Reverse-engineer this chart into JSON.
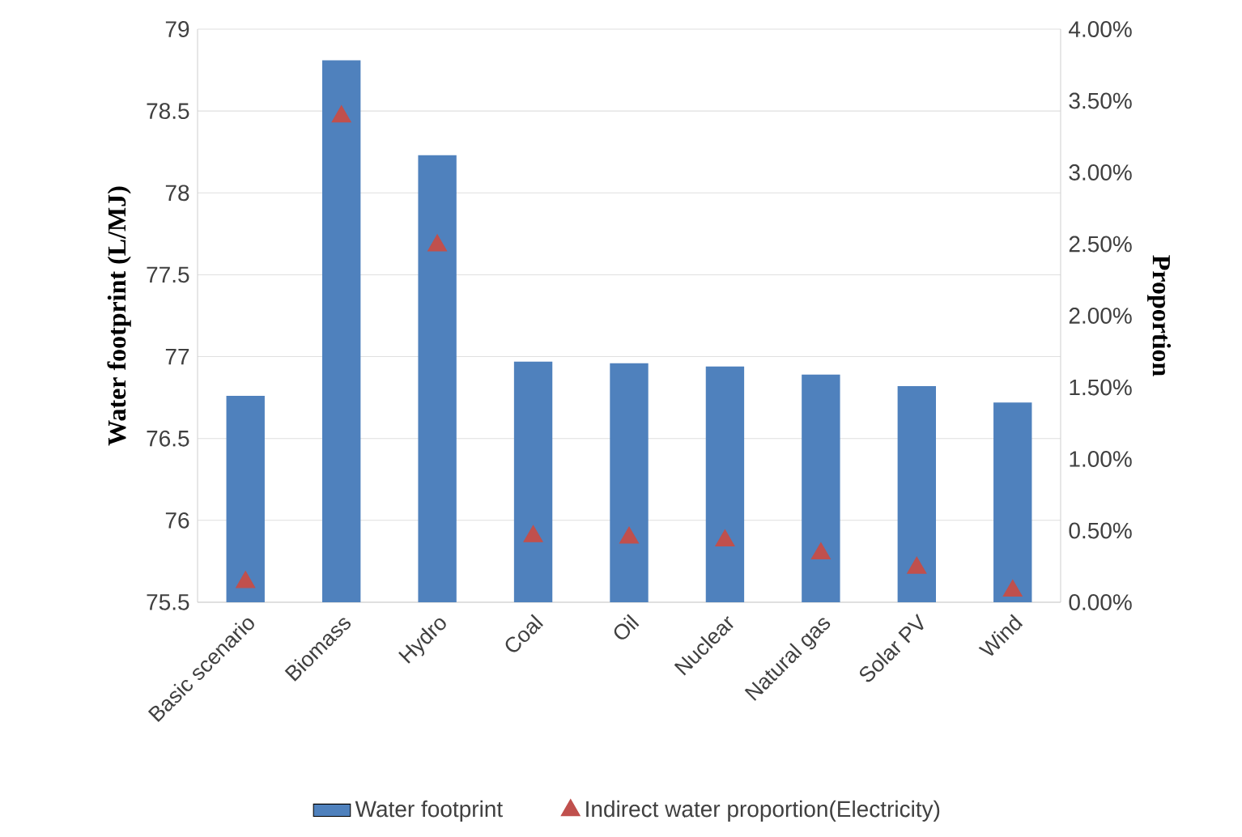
{
  "chart_data": {
    "type": "bar",
    "categories": [
      "Basic scenario",
      "Biomass",
      "Hydro",
      "Coal",
      "Oil",
      "Nuclear",
      "Natural gas",
      "Solar PV",
      "Wind"
    ],
    "series": [
      {
        "name": "Water footprint",
        "color": "#4f81bd",
        "values": [
          76.76,
          78.81,
          78.23,
          76.97,
          76.96,
          76.94,
          76.89,
          76.82,
          76.72
        ]
      },
      {
        "name": "Indirect water proportion(Electricity)",
        "type": "scatter",
        "axis": "y2",
        "marker": "triangle",
        "color": "#c0504d",
        "values": [
          0.14,
          3.39,
          2.49,
          0.46,
          0.45,
          0.43,
          0.34,
          0.24,
          0.08
        ]
      }
    ],
    "ylabel": "Water footprint (L/MJ)",
    "y2label": "Proportion",
    "ylim": [
      75.5,
      79
    ],
    "yticks": [
      75.5,
      76,
      76.5,
      77,
      77.5,
      78,
      78.5,
      79
    ],
    "y2lim": [
      0,
      4
    ],
    "y2ticks": [
      {
        "value": 0,
        "label": "0.00%"
      },
      {
        "value": 0.5,
        "label": "0.50%"
      },
      {
        "value": 1,
        "label": "1.00%"
      },
      {
        "value": 1.5,
        "label": "1.50%"
      },
      {
        "value": 2,
        "label": "2.00%"
      },
      {
        "value": 2.5,
        "label": "2.50%"
      },
      {
        "value": 3,
        "label": "3.00%"
      },
      {
        "value": 3.5,
        "label": "3.50%"
      },
      {
        "value": 4,
        "label": "4.00%"
      }
    ],
    "grid": "y",
    "legend": "bottom"
  }
}
